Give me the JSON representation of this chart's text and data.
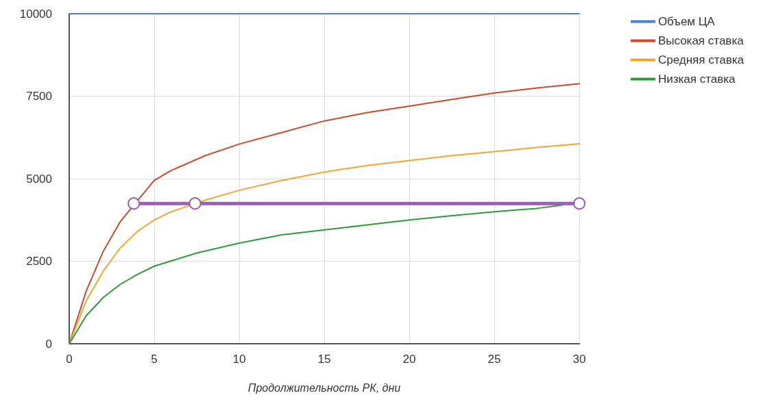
{
  "chart_data": {
    "type": "line",
    "xlabel": "Продолжительность РК, дни",
    "xlim": [
      0,
      30
    ],
    "xticks": [
      0,
      5,
      10,
      15,
      20,
      25,
      30
    ],
    "ylim": [
      0,
      10000
    ],
    "yticks": [
      0,
      2500,
      5000,
      7500,
      10000
    ],
    "grid": true,
    "legend": "top right",
    "marker": "none",
    "line_style": "solid",
    "series": [
      {
        "name": "Объем ЦА",
        "color": "#4a7fd4",
        "x": [
          0,
          30
        ],
        "values": [
          10000,
          10000
        ]
      },
      {
        "name": "Высокая ставка",
        "color": "#cc4a2c",
        "x": [
          0,
          1,
          2,
          3,
          5,
          6,
          8,
          10,
          12.5,
          15,
          17.5,
          20,
          22.5,
          25,
          27.5,
          30
        ],
        "values": [
          0,
          1600,
          2800,
          3700,
          4950,
          5250,
          5700,
          6050,
          6400,
          6750,
          7000,
          7200,
          7400,
          7600,
          7750,
          7880
        ]
      },
      {
        "name": "Средняя ставка",
        "color": "#f2a531",
        "x": [
          0,
          1,
          2,
          3,
          4,
          5,
          6,
          8,
          10,
          12.5,
          15,
          17.5,
          20,
          22.5,
          25,
          27.5,
          30
        ],
        "values": [
          0,
          1300,
          2200,
          2900,
          3400,
          3750,
          4000,
          4350,
          4650,
          4950,
          5200,
          5400,
          5550,
          5700,
          5820,
          5950,
          6060
        ]
      },
      {
        "name": "Низкая ставка",
        "color": "#2e9a3a",
        "x": [
          0,
          1,
          2,
          3,
          4,
          5,
          7.5,
          10,
          12.5,
          15,
          17.5,
          20,
          22.5,
          25,
          27.5,
          29
        ],
        "values": [
          0,
          850,
          1400,
          1800,
          2100,
          2350,
          2750,
          3050,
          3300,
          3450,
          3600,
          3750,
          3880,
          4000,
          4100,
          4200
        ]
      },
      {
        "color": "#9b5fb5",
        "marker": "circle",
        "x": [
          3.8,
          7.4,
          30
        ],
        "values": [
          4250,
          4250,
          4250
        ]
      }
    ]
  }
}
